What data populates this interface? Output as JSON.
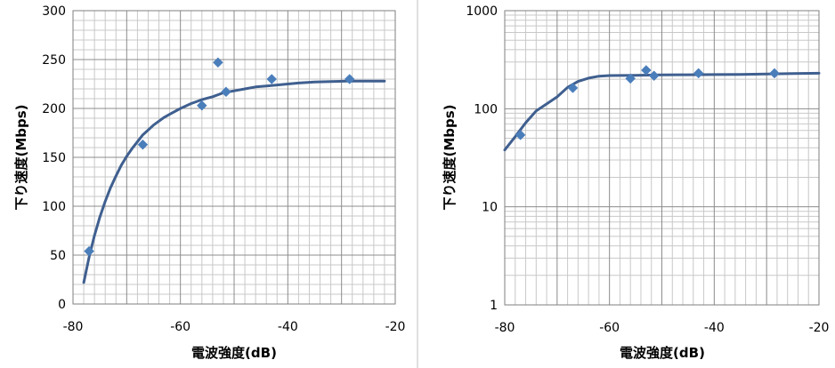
{
  "chart_data": [
    {
      "type": "scatter",
      "title": "",
      "xlabel": "電波強度(dB)",
      "ylabel": "下り速度(Mbps)",
      "xlim": [
        -80,
        -20
      ],
      "ylim": [
        0,
        300
      ],
      "x_ticks": [
        "-80",
        "-60",
        "-40",
        "-20"
      ],
      "y_ticks": [
        "0",
        "50",
        "100",
        "150",
        "200",
        "250",
        "300"
      ],
      "log_y": false,
      "grid": true,
      "series": [
        {
          "kind": "points",
          "marker": "diamond",
          "color": "#4a7ebb",
          "x": [
            -77,
            -67,
            -56,
            -53,
            -51.5,
            -43,
            -28.5
          ],
          "y": [
            54,
            163,
            203,
            247,
            217,
            230,
            230
          ]
        },
        {
          "kind": "fit-curve",
          "color": "#3f5f8f",
          "x": [
            -78,
            -77,
            -76,
            -75,
            -74,
            -73,
            -72,
            -71,
            -70,
            -69,
            -68,
            -67,
            -66,
            -65,
            -64,
            -63,
            -62,
            -60,
            -58,
            -56,
            -54,
            -52,
            -50,
            -48,
            -46,
            -44,
            -42,
            -40,
            -38,
            -35,
            -32,
            -29,
            -26,
            -22
          ],
          "y": [
            22,
            48,
            70,
            89,
            105,
            119,
            131,
            142,
            151,
            159,
            166,
            173,
            178,
            183,
            187,
            191,
            194,
            200,
            205,
            209,
            212,
            216,
            218,
            220,
            222,
            223,
            224,
            225,
            226,
            227,
            227.5,
            228,
            228,
            228
          ]
        }
      ]
    },
    {
      "type": "scatter",
      "title": "",
      "xlabel": "電波強度(dB)",
      "ylabel": "下り速度(Mbps)",
      "xlim": [
        -80,
        -20
      ],
      "ylim": [
        1,
        1000
      ],
      "x_ticks": [
        "-80",
        "-60",
        "-40",
        "-20"
      ],
      "y_ticks": [
        "1",
        "10",
        "100",
        "1000"
      ],
      "log_y": true,
      "grid": true,
      "series": [
        {
          "kind": "points",
          "marker": "diamond",
          "color": "#4a7ebb",
          "x": [
            -77,
            -67,
            -56,
            -53,
            -51.5,
            -43,
            -28.5
          ],
          "y": [
            54,
            163,
            203,
            247,
            217,
            230,
            230
          ]
        },
        {
          "kind": "fit-curve",
          "color": "#3f5f8f",
          "x": [
            -80,
            -78,
            -76,
            -74,
            -72,
            -70,
            -68,
            -66,
            -64,
            -62,
            -60,
            -55,
            -50,
            -45,
            -40,
            -35,
            -30,
            -25,
            -20
          ],
          "y": [
            38,
            52,
            72,
            95,
            112,
            132,
            165,
            190,
            205,
            215,
            218,
            219,
            221,
            222,
            223,
            224,
            226,
            228,
            230
          ]
        }
      ]
    }
  ],
  "colors": {
    "marker": "#4a7ebb",
    "curve": "#3f5f8f",
    "grid_major": "#8c8c8c",
    "grid_minor": "#c8c8c8",
    "divider": "#bfbfbf"
  }
}
